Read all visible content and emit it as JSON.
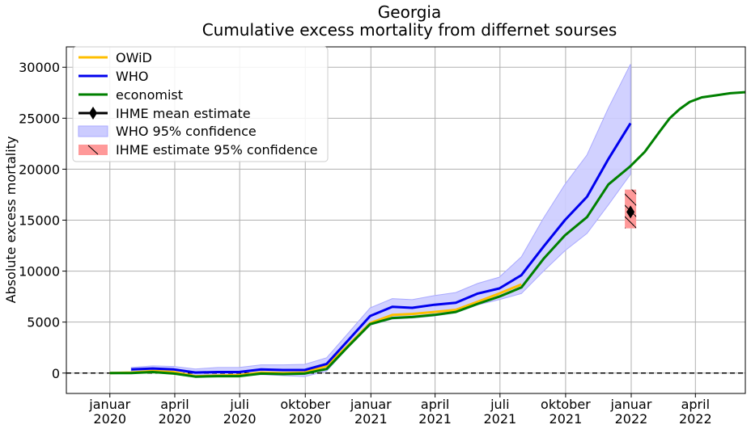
{
  "chart_data": {
    "type": "line",
    "title": "Georgia",
    "subtitle": "Cumulative excess mortality from differnet sourses",
    "xlabel": "",
    "ylabel": "Absolute excess mortality",
    "xlim": [
      "2019-11-01",
      "2022-06-10"
    ],
    "ylim": [
      -2000,
      32000
    ],
    "grid": true,
    "legend_position": "top-left",
    "x_ticks": [
      {
        "date": "2020-01-01",
        "label": [
          "januar",
          "2020"
        ]
      },
      {
        "date": "2020-04-01",
        "label": [
          "april",
          "2020"
        ]
      },
      {
        "date": "2020-07-01",
        "label": [
          "juli",
          "2020"
        ]
      },
      {
        "date": "2020-10-01",
        "label": [
          "oktober",
          "2020"
        ]
      },
      {
        "date": "2021-01-01",
        "label": [
          "januar",
          "2021"
        ]
      },
      {
        "date": "2021-04-01",
        "label": [
          "april",
          "2021"
        ]
      },
      {
        "date": "2021-07-01",
        "label": [
          "juli",
          "2021"
        ]
      },
      {
        "date": "2021-10-01",
        "label": [
          "oktober",
          "2021"
        ]
      },
      {
        "date": "2022-01-01",
        "label": [
          "januar",
          "2022"
        ]
      },
      {
        "date": "2022-04-01",
        "label": [
          "april",
          "2022"
        ]
      }
    ],
    "y_ticks": [
      0,
      5000,
      10000,
      15000,
      20000,
      25000,
      30000
    ],
    "reference_line": {
      "y": 0,
      "style": "dashed",
      "color": "#000000"
    },
    "series": [
      {
        "name": "OWiD",
        "color": "#ffbf00",
        "points": [
          [
            "2020-01-01",
            0
          ],
          [
            "2020-01-31",
            50
          ],
          [
            "2020-03-01",
            200
          ],
          [
            "2020-03-31",
            100
          ],
          [
            "2020-04-30",
            -300
          ],
          [
            "2020-05-31",
            -250
          ],
          [
            "2020-06-30",
            -200
          ],
          [
            "2020-07-31",
            50
          ],
          [
            "2020-08-31",
            0
          ],
          [
            "2020-09-30",
            50
          ],
          [
            "2020-10-31",
            700
          ],
          [
            "2020-11-30",
            2700
          ],
          [
            "2020-12-31",
            4900
          ],
          [
            "2021-01-31",
            5700
          ],
          [
            "2021-02-28",
            5800
          ],
          [
            "2021-03-31",
            6000
          ],
          [
            "2021-04-30",
            6200
          ],
          [
            "2021-05-31",
            7000
          ],
          [
            "2021-06-30",
            7800
          ],
          [
            "2021-07-31",
            8700
          ]
        ]
      },
      {
        "name": "WHO",
        "color": "#0000ee",
        "points": [
          [
            "2020-01-31",
            350
          ],
          [
            "2020-03-01",
            450
          ],
          [
            "2020-03-31",
            350
          ],
          [
            "2020-04-30",
            50
          ],
          [
            "2020-05-31",
            100
          ],
          [
            "2020-06-30",
            100
          ],
          [
            "2020-07-31",
            350
          ],
          [
            "2020-08-31",
            300
          ],
          [
            "2020-09-30",
            300
          ],
          [
            "2020-10-31",
            900
          ],
          [
            "2020-11-30",
            3200
          ],
          [
            "2020-12-31",
            5600
          ],
          [
            "2021-01-31",
            6500
          ],
          [
            "2021-02-28",
            6400
          ],
          [
            "2021-03-31",
            6700
          ],
          [
            "2021-04-30",
            6900
          ],
          [
            "2021-05-31",
            7800
          ],
          [
            "2021-06-30",
            8300
          ],
          [
            "2021-07-31",
            9600
          ],
          [
            "2021-08-31",
            12400
          ],
          [
            "2021-09-30",
            15000
          ],
          [
            "2021-10-31",
            17300
          ],
          [
            "2021-11-30",
            21000
          ],
          [
            "2021-12-31",
            24500
          ]
        ],
        "ci_lower": [
          [
            "2020-01-31",
            0
          ],
          [
            "2020-03-01",
            100
          ],
          [
            "2020-03-31",
            0
          ],
          [
            "2020-04-30",
            -300
          ],
          [
            "2020-05-31",
            -300
          ],
          [
            "2020-06-30",
            -350
          ],
          [
            "2020-07-31",
            -150
          ],
          [
            "2020-08-31",
            -250
          ],
          [
            "2020-09-30",
            -350
          ],
          [
            "2020-10-31",
            200
          ],
          [
            "2020-11-30",
            2500
          ],
          [
            "2020-12-31",
            4700
          ],
          [
            "2021-01-31",
            5300
          ],
          [
            "2021-02-28",
            5400
          ],
          [
            "2021-03-31",
            5600
          ],
          [
            "2021-04-30",
            5900
          ],
          [
            "2021-05-31",
            6700
          ],
          [
            "2021-06-30",
            7200
          ],
          [
            "2021-07-31",
            7800
          ],
          [
            "2021-08-31",
            10000
          ],
          [
            "2021-09-30",
            12000
          ],
          [
            "2021-10-31",
            13700
          ],
          [
            "2021-11-30",
            16500
          ],
          [
            "2021-12-31",
            19500
          ]
        ],
        "ci_upper": [
          [
            "2020-01-31",
            550
          ],
          [
            "2020-03-01",
            700
          ],
          [
            "2020-03-31",
            650
          ],
          [
            "2020-04-30",
            400
          ],
          [
            "2020-05-31",
            550
          ],
          [
            "2020-06-30",
            550
          ],
          [
            "2020-07-31",
            800
          ],
          [
            "2020-08-31",
            800
          ],
          [
            "2020-09-30",
            850
          ],
          [
            "2020-10-31",
            1500
          ],
          [
            "2020-11-30",
            3900
          ],
          [
            "2020-12-31",
            6400
          ],
          [
            "2021-01-31",
            7300
          ],
          [
            "2021-02-28",
            7200
          ],
          [
            "2021-03-31",
            7600
          ],
          [
            "2021-04-30",
            7900
          ],
          [
            "2021-05-31",
            8800
          ],
          [
            "2021-06-30",
            9400
          ],
          [
            "2021-07-31",
            11400
          ],
          [
            "2021-08-31",
            15200
          ],
          [
            "2021-09-30",
            18500
          ],
          [
            "2021-10-31",
            21400
          ],
          [
            "2021-11-30",
            26000
          ],
          [
            "2021-12-31",
            30300
          ]
        ]
      },
      {
        "name": "economist",
        "color": "#008000",
        "points": [
          [
            "2020-01-01",
            0
          ],
          [
            "2020-01-31",
            0
          ],
          [
            "2020-03-01",
            100
          ],
          [
            "2020-03-31",
            -50
          ],
          [
            "2020-04-30",
            -350
          ],
          [
            "2020-05-31",
            -300
          ],
          [
            "2020-06-30",
            -300
          ],
          [
            "2020-07-31",
            -50
          ],
          [
            "2020-08-31",
            -100
          ],
          [
            "2020-09-30",
            -50
          ],
          [
            "2020-10-31",
            400
          ],
          [
            "2020-11-30",
            2600
          ],
          [
            "2020-12-31",
            4800
          ],
          [
            "2021-01-31",
            5400
          ],
          [
            "2021-02-28",
            5500
          ],
          [
            "2021-03-31",
            5700
          ],
          [
            "2021-04-30",
            6000
          ],
          [
            "2021-05-31",
            6800
          ],
          [
            "2021-06-30",
            7500
          ],
          [
            "2021-07-31",
            8400
          ],
          [
            "2021-08-31",
            11200
          ],
          [
            "2021-09-30",
            13500
          ],
          [
            "2021-10-31",
            15300
          ],
          [
            "2021-11-30",
            18500
          ],
          [
            "2021-12-31",
            20300
          ],
          [
            "2022-01-20",
            21700
          ],
          [
            "2022-02-10",
            23700
          ],
          [
            "2022-02-24",
            25000
          ],
          [
            "2022-03-10",
            25900
          ],
          [
            "2022-03-24",
            26600
          ],
          [
            "2022-04-10",
            27050
          ],
          [
            "2022-05-01",
            27250
          ],
          [
            "2022-05-20",
            27450
          ],
          [
            "2022-06-10",
            27550
          ]
        ]
      }
    ],
    "ihme": {
      "mean_label": "IHME mean estimate",
      "ci_label": " IHME estimate 95% confidence",
      "date": "2021-12-31",
      "mean": 15800,
      "ci": [
        14200,
        18000
      ],
      "ci_color": "#ff9999",
      "marker_color": "#000000"
    },
    "who_ci_label": "WHO 95% confidence",
    "who_ci_color": "#ccccff"
  }
}
